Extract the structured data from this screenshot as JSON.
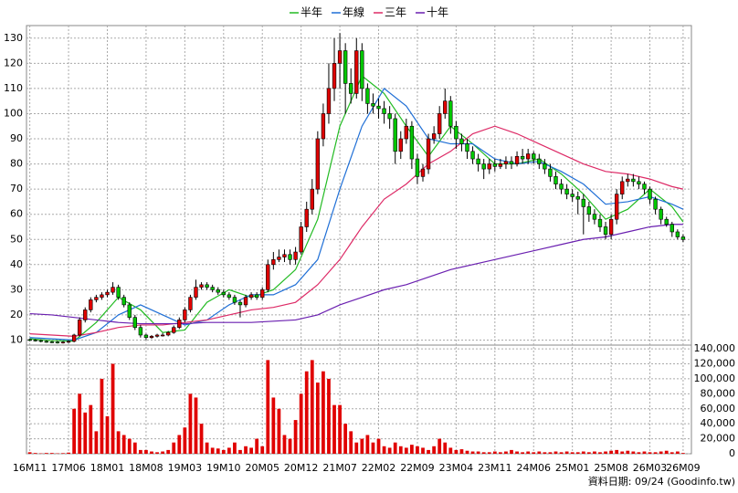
{
  "chart_data": {
    "type": "candlestick",
    "legend": "top",
    "grid": true,
    "up_color": "#e00000",
    "down_color": "#00c800",
    "x": [
      0,
      1,
      2,
      3,
      4,
      5,
      6,
      7,
      8,
      9,
      10,
      11,
      12,
      13,
      14,
      15,
      16,
      17,
      18,
      19,
      20,
      21,
      22,
      23,
      24,
      25,
      26,
      27,
      28,
      29,
      30,
      31,
      32,
      33,
      34,
      35,
      36,
      37,
      38,
      39,
      40,
      41,
      42,
      43,
      44,
      45,
      46,
      47,
      48,
      49,
      50,
      51,
      52,
      53,
      54,
      55,
      56,
      57,
      58,
      59,
      60,
      61,
      62,
      63,
      64,
      65,
      66,
      67,
      68,
      69,
      70,
      71,
      72,
      73,
      74,
      75,
      76,
      77,
      78,
      79,
      80,
      81,
      82,
      83,
      84,
      85,
      86,
      87,
      88,
      89,
      90,
      91,
      92,
      93,
      94,
      95,
      96,
      97,
      98,
      99,
      100,
      101,
      102,
      103,
      104,
      105,
      106,
      107,
      108,
      109,
      110,
      111,
      112,
      113,
      114,
      115,
      116,
      117,
      118
    ],
    "xlim": [
      -0.6,
      119.5
    ],
    "xticks": [
      {
        "value": 0,
        "label": "16M11"
      },
      {
        "value": 7,
        "label": "17M06"
      },
      {
        "value": 14,
        "label": "18M01"
      },
      {
        "value": 21,
        "label": "18M08"
      },
      {
        "value": 28,
        "label": "19M03"
      },
      {
        "value": 35,
        "label": "19M10"
      },
      {
        "value": 42,
        "label": "20M05"
      },
      {
        "value": 49,
        "label": "20M12"
      },
      {
        "value": 56,
        "label": "21M07"
      },
      {
        "value": 63,
        "label": "22M02"
      },
      {
        "value": 70,
        "label": "22M09"
      },
      {
        "value": 77,
        "label": "23M04"
      },
      {
        "value": 84,
        "label": "23M11"
      },
      {
        "value": 91,
        "label": "24M06"
      },
      {
        "value": 98,
        "label": "25M01"
      },
      {
        "value": 105,
        "label": "25M08"
      },
      {
        "value": 112,
        "label": "26M03"
      },
      {
        "value": 118,
        "label": "26M09"
      }
    ],
    "ylim": [
      8,
      135
    ],
    "yticks": [
      10,
      20,
      30,
      40,
      50,
      60,
      70,
      80,
      90,
      100,
      110,
      120,
      130
    ],
    "open": [
      10.2,
      10,
      9.8,
      9.5,
      9.3,
      9.2,
      9,
      9.2,
      9.5,
      12,
      18,
      22,
      26,
      27,
      28,
      29,
      31,
      27,
      24,
      19,
      15,
      12,
      11,
      11.5,
      12,
      12,
      13,
      15,
      18,
      22,
      27,
      31,
      32,
      31,
      30,
      29,
      28,
      27,
      25,
      24,
      27,
      28,
      27,
      30,
      40,
      42,
      43,
      44,
      42,
      45,
      55,
      62,
      70,
      90,
      100,
      110,
      120,
      125,
      112,
      108,
      125,
      110,
      104,
      103,
      102,
      100,
      98,
      85,
      90,
      95,
      82,
      75,
      78,
      90,
      92,
      100,
      105,
      95,
      90,
      88,
      85,
      82,
      80,
      78,
      80,
      79,
      80,
      81,
      80,
      83,
      82,
      84,
      82,
      80,
      78,
      75,
      72,
      70,
      68,
      67,
      66,
      63,
      60,
      58,
      55,
      52,
      58,
      68,
      73,
      74,
      73,
      72,
      70,
      66,
      62,
      58,
      56,
      53,
      51
    ],
    "high": [
      10.6,
      10.4,
      10.2,
      9.9,
      9.7,
      9.6,
      9.6,
      9.9,
      12.5,
      19,
      23,
      27,
      28,
      29,
      30,
      33,
      32,
      28,
      25,
      20,
      16,
      12.5,
      12,
      12.5,
      12.8,
      13.6,
      15.8,
      19,
      23,
      28,
      34,
      33,
      33,
      32,
      31,
      30,
      29,
      28,
      26,
      28,
      29,
      29,
      31,
      42,
      45,
      46,
      46,
      46,
      47,
      57,
      65,
      74,
      93,
      104,
      120,
      130,
      132,
      128,
      118,
      130,
      128,
      112,
      108,
      106,
      105,
      103,
      100,
      93,
      98,
      97,
      84,
      80,
      92,
      95,
      103,
      110,
      107,
      97,
      92,
      90,
      87,
      84,
      82,
      82,
      82,
      82,
      83,
      83,
      85,
      86,
      86,
      85,
      84,
      82,
      80,
      77,
      74,
      72,
      70,
      69,
      68,
      65,
      62,
      60,
      57,
      60,
      70,
      75,
      76,
      76,
      75,
      73,
      71,
      67,
      63,
      59,
      57,
      54,
      52
    ],
    "low": [
      9.6,
      9.4,
      9.1,
      8.9,
      8.8,
      8.6,
      8.6,
      8.8,
      9.1,
      11.5,
      17,
      21,
      25,
      26,
      27,
      28,
      26,
      23,
      18,
      14,
      11,
      10,
      10.5,
      11,
      11.4,
      11.5,
      12.5,
      14.4,
      17,
      21,
      26,
      30,
      30,
      29,
      28,
      27,
      26,
      24,
      19,
      23,
      26,
      26,
      26,
      29,
      38,
      41,
      41,
      40,
      40,
      44,
      53,
      60,
      68,
      87,
      96,
      105,
      110,
      100,
      104,
      106,
      105,
      100,
      100,
      98,
      96,
      94,
      80,
      82,
      88,
      78,
      72,
      73,
      76,
      88,
      90,
      98,
      92,
      86,
      85,
      82,
      80,
      77,
      74,
      76,
      77,
      78,
      78,
      78,
      79,
      80,
      80,
      80,
      78,
      76,
      73,
      70,
      68,
      66,
      65,
      60,
      52,
      57,
      56,
      53,
      50,
      50,
      56,
      66,
      71,
      71,
      70,
      68,
      64,
      60,
      56,
      55,
      51,
      50,
      49
    ],
    "close": [
      10,
      9.8,
      9.5,
      9.3,
      9.2,
      9,
      9.2,
      9.5,
      12,
      18,
      22,
      26,
      27,
      28,
      29,
      31,
      27,
      24,
      19,
      15,
      12,
      11,
      11.5,
      12,
      12,
      13,
      15,
      18,
      22,
      27,
      31,
      32,
      31,
      30,
      29,
      28,
      27,
      25,
      24,
      27,
      28,
      27,
      30,
      40,
      42,
      43,
      44,
      42,
      45,
      55,
      62,
      70,
      90,
      100,
      110,
      120,
      125,
      112,
      108,
      125,
      110,
      104,
      103,
      102,
      100,
      98,
      85,
      90,
      95,
      82,
      75,
      78,
      90,
      92,
      100,
      105,
      95,
      90,
      88,
      85,
      82,
      80,
      78,
      80,
      79,
      80,
      81,
      80,
      83,
      82,
      84,
      82,
      80,
      78,
      75,
      72,
      70,
      68,
      67,
      66,
      63,
      60,
      58,
      55,
      52,
      58,
      68,
      73,
      74,
      73,
      72,
      70,
      66,
      62,
      58,
      56,
      53,
      51,
      50
    ],
    "series": [
      {
        "name": "半年",
        "color": "#22bb22",
        "x": [
          0,
          4,
          8,
          12,
          16,
          20,
          24,
          28,
          32,
          36,
          40,
          44,
          48,
          52,
          56,
          60,
          64,
          68,
          72,
          76,
          80,
          84,
          88,
          92,
          96,
          100,
          104,
          108,
          112,
          116,
          118
        ],
        "values": [
          10.5,
          9.8,
          9.6,
          17,
          27,
          22,
          13,
          14,
          25,
          30,
          27,
          30,
          38,
          58,
          95,
          115,
          108,
          95,
          83,
          95,
          88,
          80,
          80,
          82,
          76,
          68,
          58,
          62,
          70,
          63,
          57
        ]
      },
      {
        "name": "年線",
        "color": "#1f6fd6",
        "x": [
          0,
          4,
          8,
          12,
          16,
          20,
          24,
          28,
          32,
          36,
          40,
          44,
          48,
          52,
          56,
          60,
          64,
          68,
          72,
          76,
          80,
          84,
          88,
          92,
          96,
          100,
          104,
          108,
          112,
          116,
          118
        ],
        "values": [
          11,
          10.5,
          10,
          13,
          20,
          24,
          20,
          16,
          18,
          24,
          28,
          28,
          32,
          42,
          70,
          95,
          110,
          103,
          90,
          88,
          88,
          82,
          80,
          81,
          77,
          72,
          64,
          65,
          67,
          64,
          62
        ]
      },
      {
        "name": "三年",
        "color": "#dd2a66",
        "x": [
          0,
          4,
          8,
          12,
          16,
          20,
          24,
          28,
          32,
          36,
          40,
          44,
          48,
          52,
          56,
          60,
          64,
          68,
          72,
          76,
          80,
          84,
          88,
          92,
          96,
          100,
          104,
          108,
          112,
          116,
          118
        ],
        "values": [
          12.5,
          12,
          11.5,
          13,
          15,
          16,
          16,
          17,
          18,
          20,
          22,
          23,
          25,
          32,
          42,
          55,
          66,
          72,
          80,
          85,
          92,
          95,
          92,
          88,
          84,
          80,
          77,
          76,
          74,
          71,
          70
        ]
      },
      {
        "name": "十年",
        "color": "#6a1fb0",
        "x": [
          0,
          4,
          8,
          12,
          16,
          20,
          24,
          28,
          32,
          36,
          40,
          44,
          48,
          52,
          56,
          60,
          64,
          68,
          72,
          76,
          80,
          84,
          88,
          92,
          96,
          100,
          104,
          108,
          112,
          116,
          118
        ],
        "values": [
          20.5,
          20,
          19,
          18,
          17,
          16.5,
          16.5,
          16.5,
          17,
          17,
          17,
          17.5,
          18,
          20,
          24,
          27,
          30,
          32,
          35,
          38,
          40,
          42,
          44,
          46,
          48,
          50,
          51,
          53,
          55,
          56,
          56
        ]
      }
    ],
    "volume": {
      "color": "#e00000",
      "ylim": [
        0,
        145000
      ],
      "yticks": [
        0,
        {
          "value": 20000,
          "label": "20,000"
        },
        {
          "value": 40000,
          "label": "40,000"
        },
        {
          "value": 60000,
          "label": "60,000"
        },
        {
          "value": 80000,
          "label": "80,000"
        },
        {
          "value": 100000,
          "label": "100,000"
        },
        {
          "value": 120000,
          "label": "120,000"
        },
        {
          "value": 140000,
          "label": "140,000"
        }
      ],
      "values": [
        2000,
        1000,
        500,
        1000,
        1000,
        500,
        800,
        1500,
        60000,
        80000,
        55000,
        65000,
        30000,
        100000,
        50000,
        120000,
        30000,
        25000,
        20000,
        15000,
        5000,
        5000,
        3000,
        2000,
        3000,
        5000,
        15000,
        25000,
        35000,
        80000,
        75000,
        40000,
        15000,
        8000,
        7000,
        5000,
        8000,
        15000,
        5000,
        10000,
        8000,
        20000,
        10000,
        125000,
        75000,
        60000,
        25000,
        20000,
        45000,
        80000,
        110000,
        125000,
        95000,
        110000,
        100000,
        65000,
        65000,
        40000,
        30000,
        15000,
        20000,
        25000,
        15000,
        20000,
        10000,
        8000,
        15000,
        10000,
        8000,
        12000,
        10000,
        8000,
        5000,
        10000,
        20000,
        15000,
        8000,
        5000,
        6000,
        4000,
        3000,
        3000,
        2000,
        2000,
        3000,
        2000,
        3000,
        5000,
        3000,
        2000,
        3000,
        2000,
        3000,
        2000,
        2000,
        3000,
        2000,
        3000,
        2000,
        2000,
        3000,
        2000,
        3000,
        2000,
        3000,
        4000,
        5000,
        3000,
        4000,
        3000,
        2000,
        3000,
        2000,
        2000,
        3000,
        4000,
        2000,
        3000,
        1000
      ]
    },
    "footer": "資料日期: 09/24 (Goodinfo.tw)"
  }
}
